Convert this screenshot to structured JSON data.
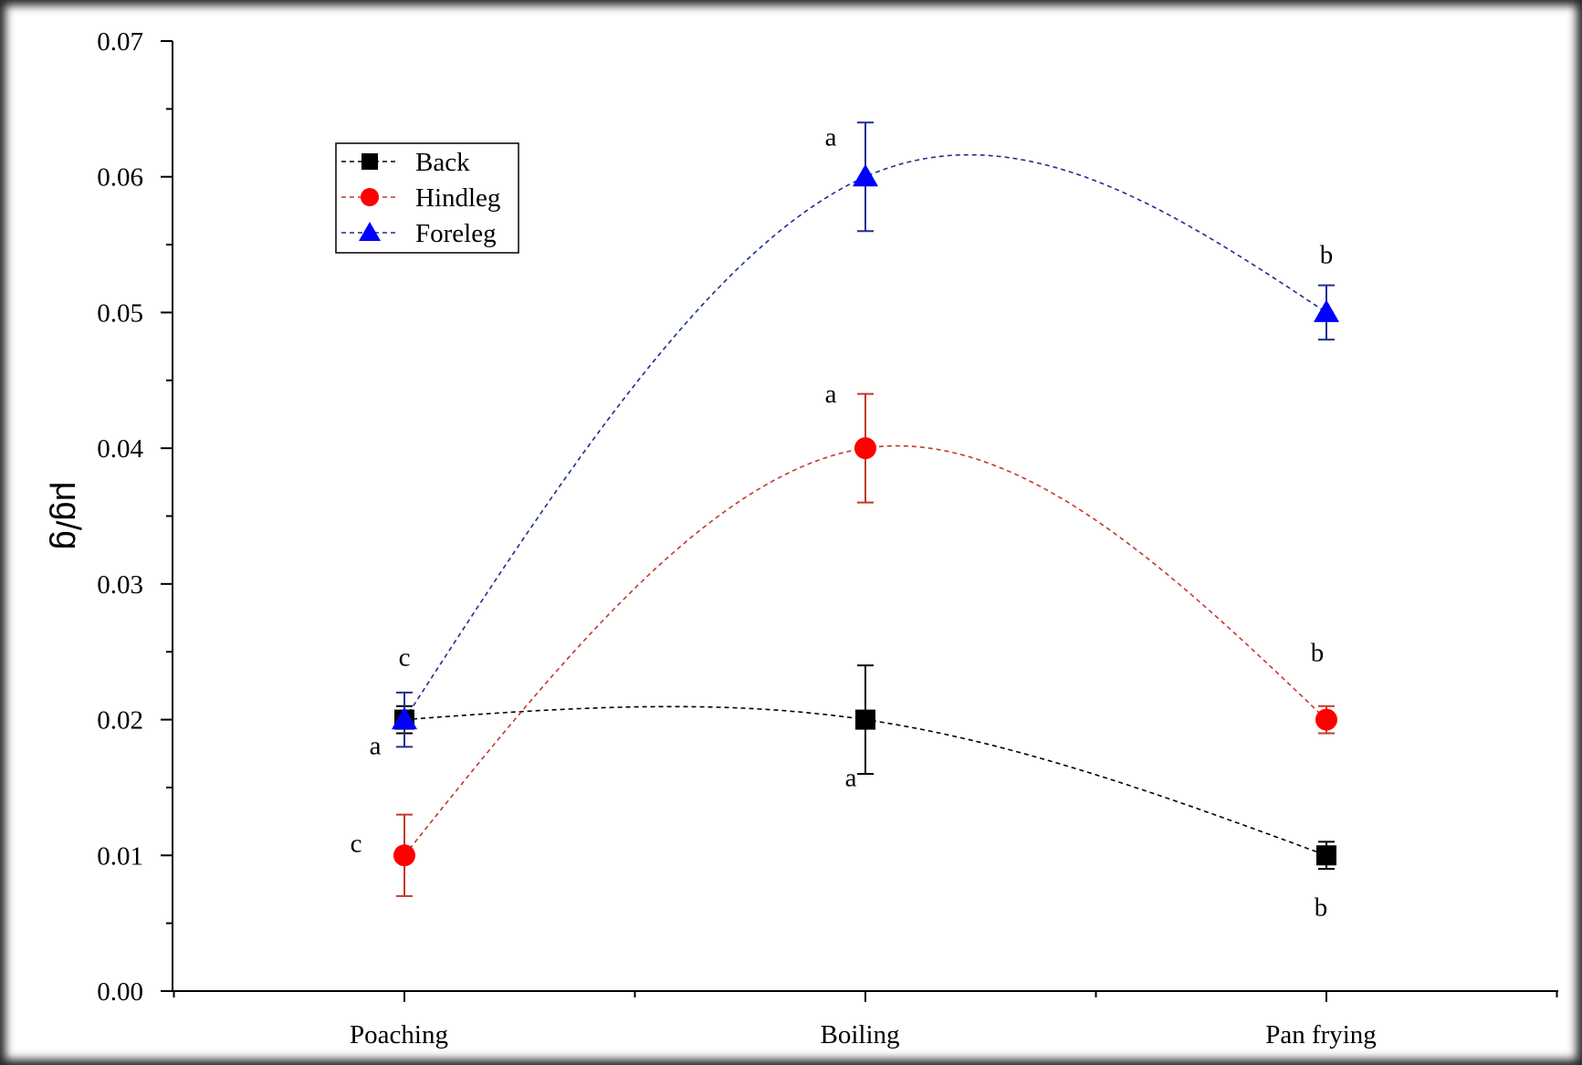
{
  "chart_data": {
    "type": "line",
    "categories": [
      "Poaching",
      "Boiling",
      "Pan frying"
    ],
    "ylabel": "μg/g",
    "xlabel": "",
    "ylim": [
      0,
      0.07
    ],
    "yticks": [
      "0.00",
      "0.01",
      "0.02",
      "0.03",
      "0.04",
      "0.05",
      "0.06",
      "0.07"
    ],
    "grid": false,
    "legend_position": "top-left",
    "series": [
      {
        "name": "Back",
        "color": "#000000",
        "marker": "square",
        "values": [
          0.02,
          0.02,
          0.01
        ],
        "errors": [
          0.001,
          0.004,
          0.001
        ],
        "letters": [
          "a",
          "a",
          "b"
        ]
      },
      {
        "name": "Hindleg",
        "color": "#ff0000",
        "line_color": "#c0392b",
        "marker": "circle",
        "values": [
          0.01,
          0.04,
          0.02
        ],
        "errors": [
          0.003,
          0.004,
          0.001
        ],
        "letters": [
          "c",
          "a",
          "b"
        ]
      },
      {
        "name": "Foreleg",
        "color": "#0000ff",
        "line_color": "#1f2f8f",
        "marker": "triangle",
        "values": [
          0.02,
          0.06,
          0.05
        ],
        "errors": [
          0.002,
          0.004,
          0.002
        ],
        "letters": [
          "c",
          "a",
          "b"
        ]
      }
    ]
  }
}
